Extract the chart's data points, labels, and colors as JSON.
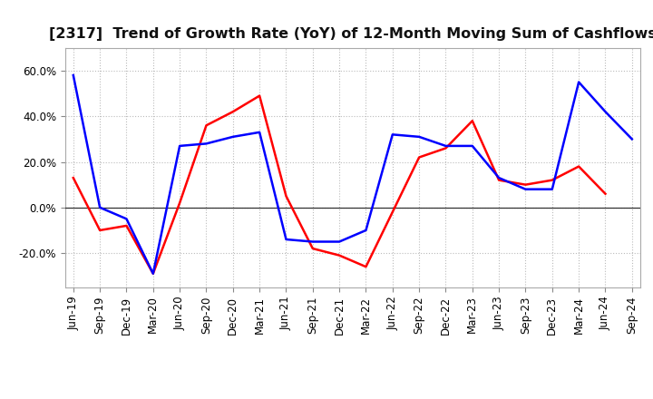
{
  "title": "[2317]  Trend of Growth Rate (YoY) of 12-Month Moving Sum of Cashflows",
  "x_labels": [
    "Jun-19",
    "Sep-19",
    "Dec-19",
    "Mar-20",
    "Jun-20",
    "Sep-20",
    "Dec-20",
    "Mar-21",
    "Jun-21",
    "Sep-21",
    "Dec-21",
    "Mar-22",
    "Jun-22",
    "Sep-22",
    "Dec-22",
    "Mar-23",
    "Jun-23",
    "Sep-23",
    "Dec-23",
    "Mar-24",
    "Jun-24",
    "Sep-24"
  ],
  "operating_cashflow": [
    13.0,
    -10.0,
    -8.0,
    -29.0,
    2.0,
    36.0,
    42.0,
    49.0,
    5.0,
    -18.0,
    -21.0,
    -26.0,
    -2.0,
    22.0,
    26.0,
    38.0,
    12.0,
    10.0,
    12.0,
    18.0,
    6.0,
    null
  ],
  "free_cashflow": [
    58.0,
    0.0,
    -5.0,
    -29.0,
    27.0,
    28.0,
    31.0,
    33.0,
    -14.0,
    -15.0,
    -15.0,
    -10.0,
    32.0,
    31.0,
    27.0,
    27.0,
    13.0,
    8.0,
    8.0,
    55.0,
    42.0,
    30.0
  ],
  "ylim": [
    -35,
    70
  ],
  "yticks": [
    -20.0,
    0.0,
    20.0,
    40.0,
    60.0
  ],
  "operating_color": "#FF0000",
  "free_color": "#0000FF",
  "background_color": "#FFFFFF",
  "grid_color": "#BBBBBB",
  "title_fontsize": 11.5,
  "tick_fontsize": 8.5,
  "legend_fontsize": 9.5
}
